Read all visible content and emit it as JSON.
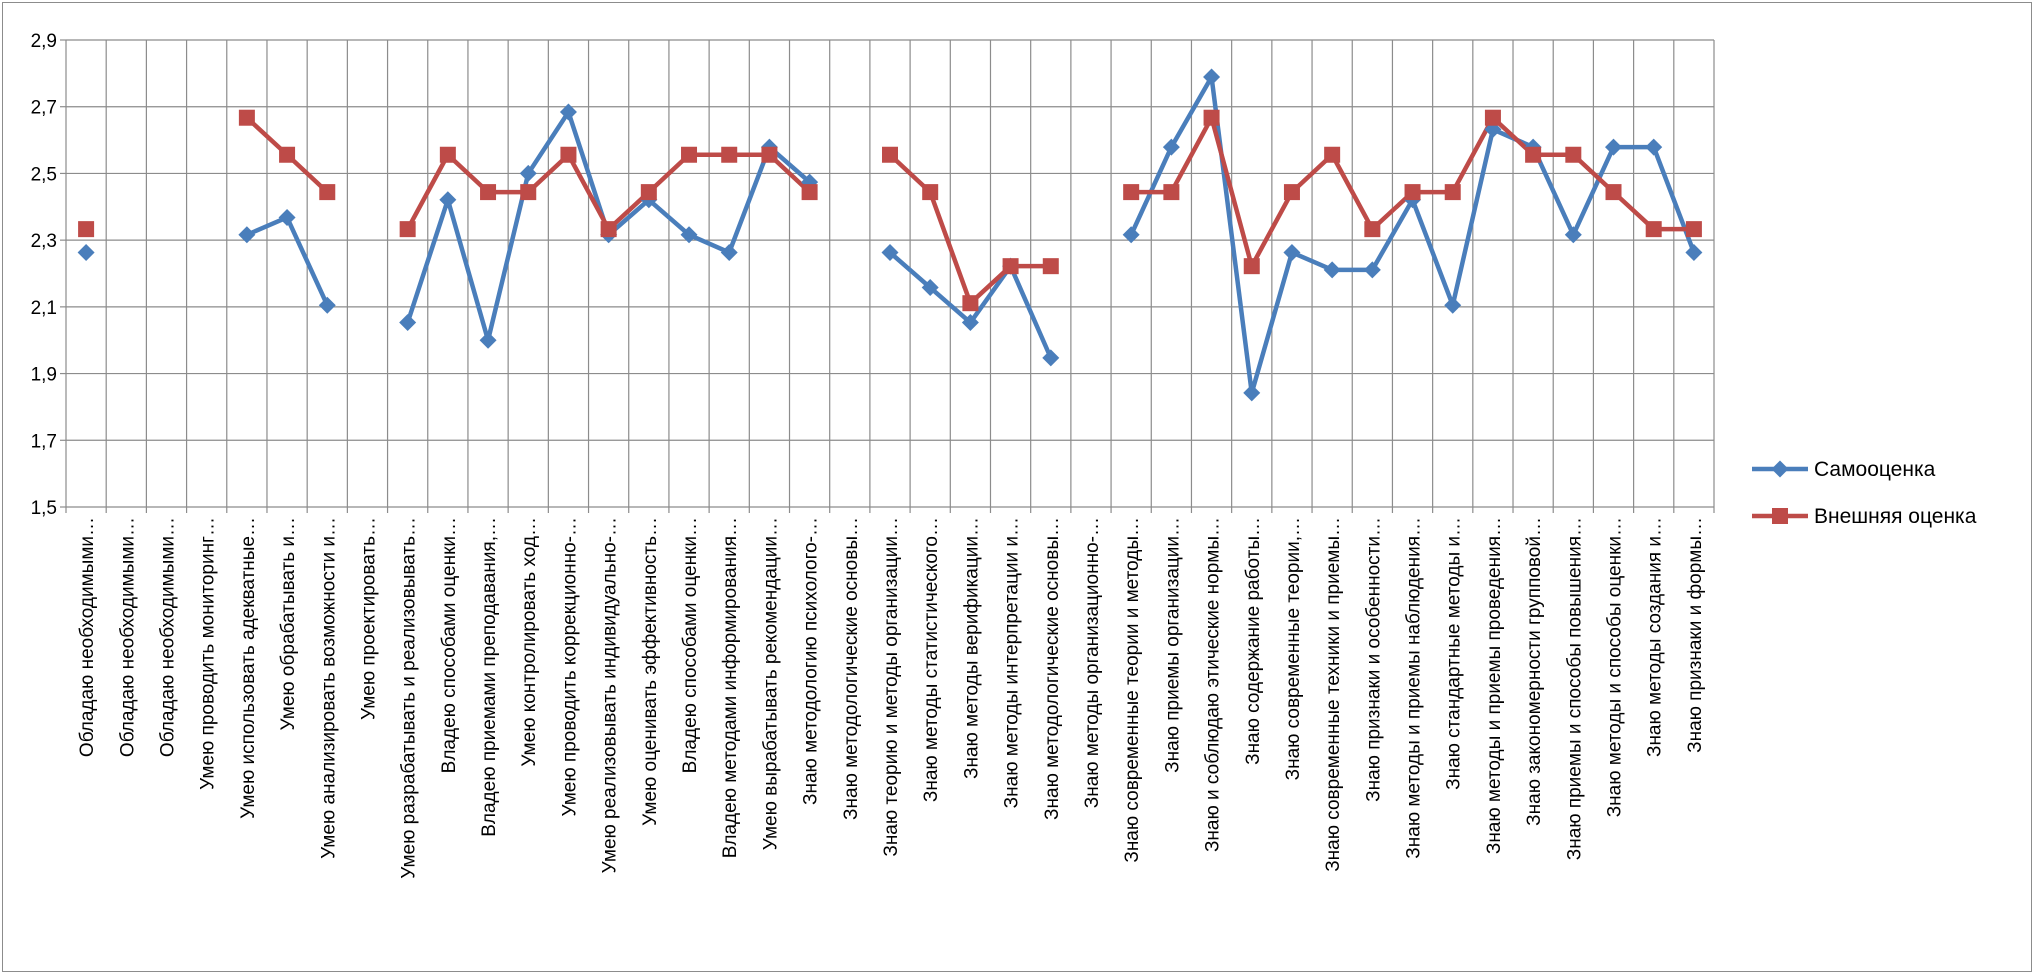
{
  "chart_data": {
    "type": "line",
    "ylim": [
      1.5,
      2.9
    ],
    "ytick_step": 0.2,
    "ytick_labels": [
      "1,5",
      "1,7",
      "1,9",
      "2,1",
      "2,3",
      "2,5",
      "2,7",
      "2,9"
    ],
    "grid": true,
    "legend_position": "right",
    "categories": [
      "Обладаю необходимыми…",
      "Обладаю необходимыми…",
      "Обладаю необходимыми…",
      "Умею проводить мониторинг…",
      "Умею использовать адекватные…",
      "Умею обрабатывать и…",
      "Умею анализировать возможности и…",
      "Умею проектировать…",
      "Умею разрабатывать и реализовывать…",
      "Владею способами оценки…",
      "Владею приемами преподавания,…",
      "Умею контролировать ход…",
      "Умею проводить коррекционно-…",
      "Умею реализовывать индивидуально-…",
      "Умею оценивать эффективность…",
      "Владею способами оценки…",
      "Владею методами информирования…",
      "Умею вырабатывать рекомендации…",
      "Знаю методологию психолого-…",
      "Знаю методологические основы…",
      "Знаю теорию и методы организации…",
      "Знаю методы статистического…",
      "Знаю методы верификации…",
      "Знаю методы интерпретации и…",
      "Знаю методологические основы…",
      "Знаю методы организационно-…",
      "Знаю современные теории и методы…",
      "Знаю приемы организации…",
      "Знаю и соблюдаю этические нормы…",
      "Знаю содержание работы…",
      "Знаю современные теории,…",
      "Знаю современные техники и приемы…",
      "Знаю признаки и особенности…",
      "Знаю методы и приемы наблюдения…",
      "Знаю стандартные методы и…",
      "Знаю методы и приемы проведения…",
      "Знаю закономерности групповой…",
      "Знаю приемы и способы повышения…",
      "Знаю методы и способы оценки…",
      "Знаю методы создания и…",
      "Знаю признаки и формы…"
    ],
    "series": [
      {
        "name": "Самооценка",
        "color": "#4a7ebb",
        "marker": "diamond",
        "values": [
          2.263,
          null,
          null,
          null,
          2.316,
          2.368,
          2.105,
          null,
          2.053,
          2.421,
          2.0,
          2.5,
          2.684,
          2.316,
          2.421,
          2.316,
          2.263,
          2.579,
          2.474,
          null,
          2.263,
          2.158,
          2.053,
          2.222,
          1.947,
          null,
          2.316,
          2.579,
          2.789,
          1.842,
          2.263,
          2.211,
          2.211,
          2.421,
          2.105,
          2.632,
          2.579,
          2.316,
          2.579,
          2.579,
          2.263
        ]
      },
      {
        "name": "Внешняя оценка",
        "color": "#be4b48",
        "marker": "square",
        "values": [
          2.333,
          null,
          null,
          null,
          2.667,
          2.556,
          2.444,
          null,
          2.333,
          2.556,
          2.444,
          2.444,
          2.556,
          2.333,
          2.444,
          2.556,
          2.556,
          2.556,
          2.444,
          null,
          2.556,
          2.444,
          2.111,
          2.222,
          2.222,
          null,
          2.444,
          2.444,
          2.667,
          2.222,
          2.444,
          2.556,
          2.333,
          2.444,
          2.444,
          2.667,
          2.556,
          2.556,
          2.444,
          2.333,
          2.333
        ]
      }
    ]
  }
}
